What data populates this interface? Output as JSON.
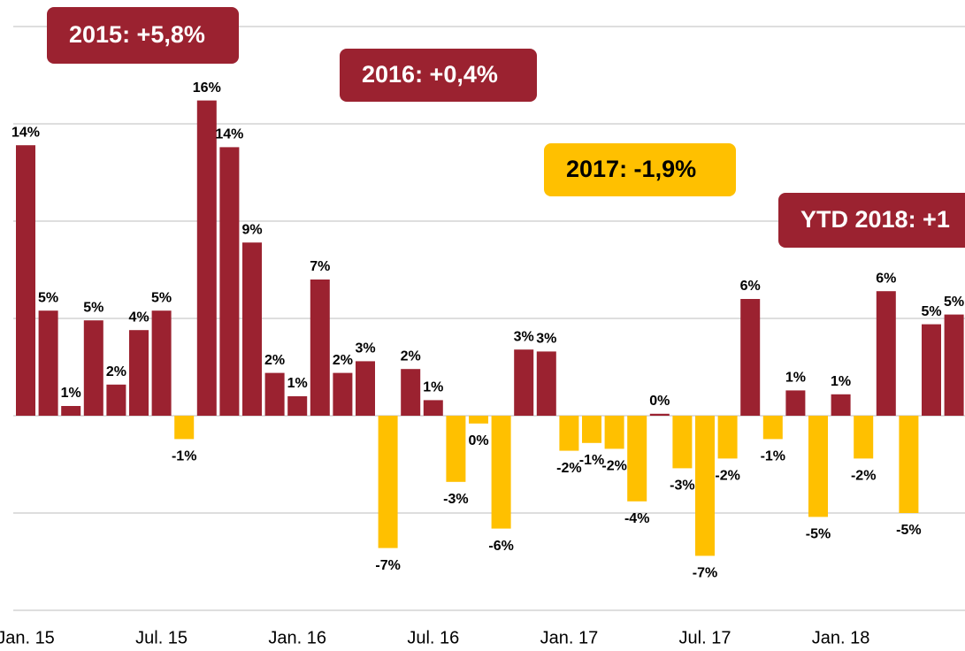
{
  "chart_data": {
    "type": "bar",
    "categories": [
      "Jan. 15",
      null,
      null,
      null,
      null,
      null,
      "Jul. 15",
      null,
      null,
      null,
      null,
      null,
      "Jan. 16",
      null,
      null,
      null,
      null,
      null,
      "Jul. 16",
      null,
      null,
      null,
      null,
      null,
      "Jan. 17",
      null,
      null,
      null,
      null,
      null,
      "Jul. 17",
      null,
      null,
      null,
      null,
      null,
      "Jan. 18",
      null,
      null,
      null,
      null,
      null
    ],
    "values": [
      13.9,
      5.4,
      0.5,
      4.9,
      1.6,
      4.4,
      5.4,
      -1.2,
      16.2,
      13.8,
      8.9,
      2.2,
      1.0,
      7.0,
      2.2,
      2.8,
      -6.8,
      2.4,
      0.8,
      -3.4,
      -0.4,
      -5.8,
      3.4,
      3.3,
      -1.8,
      -1.4,
      -1.7,
      -4.4,
      0.1,
      -2.7,
      -7.2,
      -2.2,
      6.0,
      -1.2,
      1.3,
      -5.2,
      1.1,
      -2.2,
      6.4,
      -5.0,
      4.7,
      5.2
    ],
    "value_labels": [
      "14%",
      "5%",
      "1%",
      "5%",
      "2%",
      "4%",
      "5%",
      "-1%",
      "16%",
      "14%",
      "9%",
      "2%",
      "1%",
      "7%",
      "2%",
      "3%",
      "-7%",
      "2%",
      "1%",
      "-3%",
      "0%",
      "-6%",
      "3%",
      "3%",
      "-2%",
      "-1%",
      "-2%",
      "-4%",
      "0%",
      "-3%",
      "-7%",
      "-2%",
      "6%",
      "-1%",
      "1%",
      "-5%",
      "1%",
      "-2%",
      "6%",
      "-5%",
      "5%",
      "5%"
    ],
    "positive_color": "#9b2230",
    "negative_color": "#ffc000",
    "ylim": [
      -10,
      20
    ],
    "yticks": [
      -10,
      -5,
      0,
      5,
      10,
      15,
      20
    ],
    "grid": true,
    "annotations": [
      {
        "text": "2015:  +5,8%",
        "color": "#9b2230"
      },
      {
        "text": "2016: +0,4%",
        "color": "#9b2230"
      },
      {
        "text": "2017: -1,9%",
        "color": "#ffc000"
      },
      {
        "text": "YTD 2018: +1",
        "color": "#9b2230"
      }
    ]
  }
}
